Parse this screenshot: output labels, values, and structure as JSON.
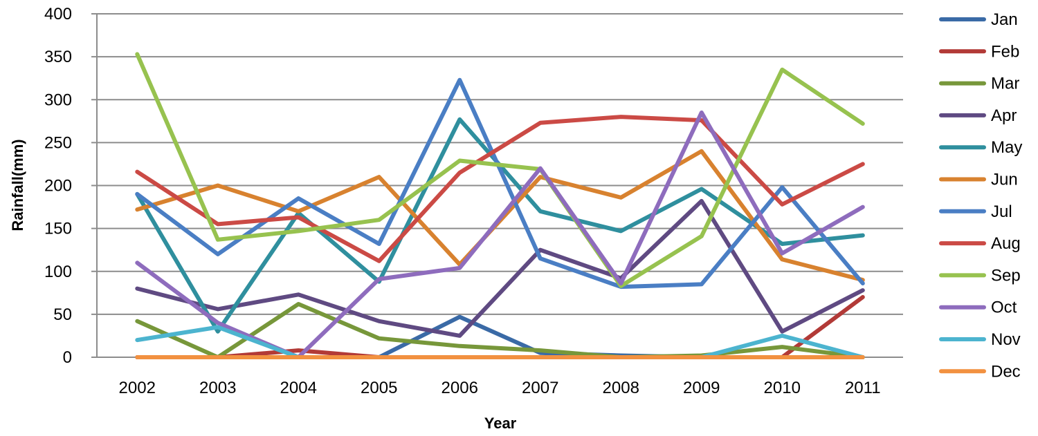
{
  "chart_data": {
    "type": "line",
    "title": "",
    "xlabel": "Year",
    "ylabel": "Rainfall(mm)",
    "ylim": [
      0,
      400
    ],
    "yticks": [
      0,
      50,
      100,
      150,
      200,
      250,
      300,
      350,
      400
    ],
    "categories": [
      "2002",
      "2003",
      "2004",
      "2005",
      "2006",
      "2007",
      "2008",
      "2009",
      "2010",
      "2011"
    ],
    "grid": true,
    "legend_position": "right",
    "series": [
      {
        "name": "Jan",
        "color": "#3a6aa6",
        "values": [
          0,
          0,
          0,
          0,
          47,
          5,
          2,
          0,
          0,
          0
        ]
      },
      {
        "name": "Feb",
        "color": "#b23a37",
        "values": [
          0,
          0,
          8,
          0,
          0,
          0,
          0,
          0,
          0,
          70
        ]
      },
      {
        "name": "Mar",
        "color": "#77973a",
        "values": [
          42,
          0,
          62,
          22,
          13,
          8,
          0,
          2,
          12,
          0
        ]
      },
      {
        "name": "Apr",
        "color": "#5f4a82",
        "values": [
          80,
          56,
          73,
          42,
          25,
          125,
          92,
          182,
          30,
          78
        ]
      },
      {
        "name": "May",
        "color": "#2f8f9e",
        "values": [
          190,
          30,
          168,
          88,
          277,
          170,
          147,
          196,
          132,
          142
        ]
      },
      {
        "name": "Jun",
        "color": "#d8822f",
        "values": [
          172,
          200,
          170,
          210,
          108,
          210,
          186,
          240,
          114,
          90
        ]
      },
      {
        "name": "Jul",
        "color": "#4a7ec4",
        "values": [
          190,
          120,
          185,
          132,
          323,
          115,
          82,
          85,
          198,
          86
        ]
      },
      {
        "name": "Aug",
        "color": "#cb4a45",
        "values": [
          216,
          155,
          163,
          112,
          215,
          273,
          280,
          276,
          178,
          225
        ]
      },
      {
        "name": "Sep",
        "color": "#97c24f",
        "values": [
          353,
          137,
          147,
          160,
          229,
          219,
          83,
          141,
          335,
          272
        ]
      },
      {
        "name": "Oct",
        "color": "#8e6cbd",
        "values": [
          110,
          40,
          0,
          91,
          104,
          220,
          86,
          285,
          121,
          175
        ]
      },
      {
        "name": "Nov",
        "color": "#4cb4cf",
        "values": [
          20,
          35,
          0,
          0,
          0,
          0,
          0,
          0,
          25,
          0
        ]
      },
      {
        "name": "Dec",
        "color": "#f29140",
        "values": [
          0,
          0,
          0,
          0,
          0,
          0,
          0,
          0,
          0,
          0
        ]
      }
    ]
  }
}
